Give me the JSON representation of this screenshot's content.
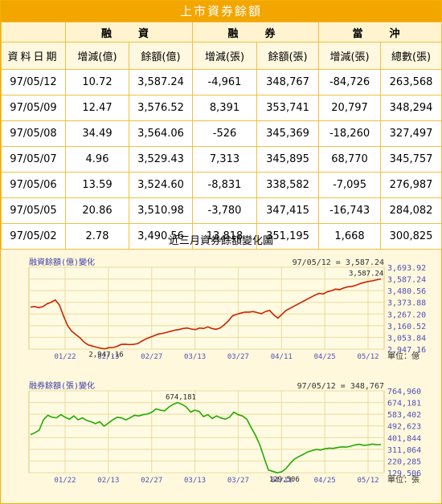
{
  "title": "上市資券餘額",
  "table": {
    "group_headers": [
      "融　資",
      "融　券",
      "當　沖"
    ],
    "columns": [
      "資料日期",
      "增減(億)",
      "餘額(億)",
      "增減(張)",
      "餘額(張)",
      "增減(張)",
      "總數(張)"
    ],
    "rows": [
      [
        "97/05/12",
        "10.72",
        "3,587.24",
        "-4,961",
        "348,767",
        "-84,726",
        "263,568"
      ],
      [
        "97/05/09",
        "12.47",
        "3,576.52",
        "8,391",
        "353,741",
        "20,797",
        "348,294"
      ],
      [
        "97/05/08",
        "34.49",
        "3,564.06",
        "-526",
        "345,369",
        "-18,260",
        "327,497"
      ],
      [
        "97/05/07",
        "4.96",
        "3,529.43",
        "7,313",
        "345,895",
        "68,770",
        "345,757"
      ],
      [
        "97/05/06",
        "13.59",
        "3,524.60",
        "-8,831",
        "338,582",
        "-7,095",
        "276,987"
      ],
      [
        "97/05/05",
        "20.86",
        "3,510.98",
        "-3,780",
        "347,415",
        "-16,743",
        "284,082"
      ],
      [
        "97/05/02",
        "2.78",
        "3,490.56",
        "13,818",
        "351,195",
        "1,668",
        "300,825"
      ]
    ]
  },
  "chart_section_title": "近三月資券餘額變化圖",
  "chart_data": [
    {
      "type": "line",
      "title": "融資餘額(億)變化",
      "header_value": "97/05/12 = 3,587.24",
      "unit_label": "單位：億",
      "color": "#cc2200",
      "x_ticks": [
        "01/22",
        "02/13",
        "02/27",
        "03/13",
        "03/27",
        "04/11",
        "04/25",
        "05/12"
      ],
      "y_ticks": [
        "3,693.92",
        "3,587.24",
        "3,480.56",
        "3,373.88",
        "3,267.20",
        "3,160.52",
        "3,053.84",
        "2,947.16"
      ],
      "ylim": [
        2947.16,
        3693.92
      ],
      "annotations": [
        {
          "label": "2,947.16"
        },
        {
          "label": "3,587.24"
        }
      ],
      "values": [
        3330,
        3335,
        3325,
        3335,
        3360,
        3375,
        3395,
        3350,
        3250,
        3160,
        3110,
        3080,
        3050,
        3010,
        2985,
        2975,
        2965,
        2955,
        2950,
        2960,
        2962,
        2972,
        2990,
        2992,
        2988,
        2990,
        2998,
        3020,
        3040,
        3055,
        3070,
        3085,
        3090,
        3100,
        3110,
        3120,
        3125,
        3135,
        3140,
        3130,
        3125,
        3140,
        3135,
        3150,
        3135,
        3128,
        3140,
        3170,
        3205,
        3250,
        3265,
        3275,
        3285,
        3285,
        3290,
        3280,
        3270,
        3290,
        3300,
        3260,
        3230,
        3265,
        3300,
        3320,
        3340,
        3360,
        3380,
        3400,
        3420,
        3440,
        3455,
        3450,
        3470,
        3480,
        3495,
        3490,
        3505,
        3515,
        3520,
        3530,
        3545,
        3556,
        3564,
        3570,
        3580,
        3587
      ]
    },
    {
      "type": "line",
      "title": "融券餘額(張)變化",
      "header_value": "97/05/12 = 348,767",
      "unit_label": "單位：張",
      "color": "#22aa00",
      "x_ticks": [
        "01/22",
        "02/13",
        "02/27",
        "03/13",
        "03/27",
        "04/11",
        "04/25",
        "05/12"
      ],
      "y_ticks": [
        "764,960",
        "674,181",
        "583,402",
        "492,623",
        "401,844",
        "311,064",
        "220,285",
        "129,506"
      ],
      "ylim": [
        129506,
        764960
      ],
      "annotations": [
        {
          "label": "674,181"
        },
        {
          "label": "129,506"
        }
      ],
      "values": [
        425000,
        440000,
        460000,
        540000,
        575000,
        560000,
        555000,
        580000,
        560000,
        545000,
        570000,
        540000,
        555000,
        535000,
        525000,
        510000,
        525000,
        490000,
        515000,
        540000,
        560000,
        555000,
        540000,
        555000,
        575000,
        570000,
        580000,
        585000,
        598000,
        625000,
        615000,
        610000,
        640000,
        660000,
        674000,
        660000,
        640000,
        600000,
        615000,
        605000,
        565000,
        580000,
        550000,
        570000,
        555000,
        545000,
        560000,
        600000,
        580000,
        570000,
        545000,
        480000,
        420000,
        345000,
        245000,
        150000,
        140000,
        129506,
        135000,
        160000,
        200000,
        235000,
        255000,
        270000,
        290000,
        300000,
        310000,
        305000,
        315000,
        320000,
        318000,
        325000,
        330000,
        328000,
        335000,
        345000,
        350000,
        342000,
        345000,
        352000,
        346000,
        348767
      ]
    }
  ]
}
